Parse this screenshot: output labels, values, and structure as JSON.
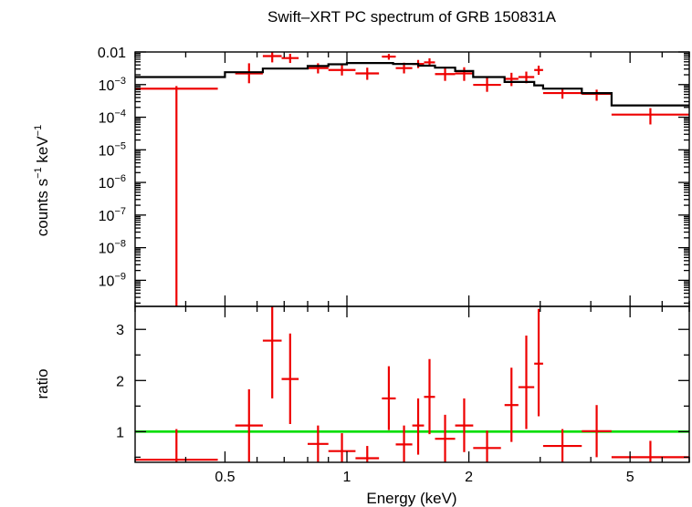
{
  "chart_data": {
    "type": "scatter",
    "title": "Swift–XRT PC spectrum of GRB 150831A",
    "xlabel": "Energy (keV)",
    "x_scale": "log",
    "x_range": [
      0.3,
      7.0
    ],
    "x_ticks": [
      {
        "value": 0.5,
        "label": "0.5"
      },
      {
        "value": 1,
        "label": "1"
      },
      {
        "value": 2,
        "label": "2"
      },
      {
        "value": 5,
        "label": "5"
      }
    ],
    "colors": {
      "data": "#ee0000",
      "model": "#000000",
      "unity": "#00dd00",
      "frame": "#000000"
    },
    "top_panel": {
      "ylabel_main": "counts s",
      "ylabel_exp1": "−1",
      "ylabel_mid": " keV",
      "ylabel_exp2": "−1",
      "y_scale": "log",
      "y_range_exp": [
        -9.8,
        -2.0
      ],
      "y_ticks": [
        {
          "exp": -2,
          "text": "0.01",
          "sup": ""
        },
        {
          "exp": -3,
          "text": "10",
          "sup": "−3"
        },
        {
          "exp": -4,
          "text": "10",
          "sup": "−4"
        },
        {
          "exp": -5,
          "text": "10",
          "sup": "−5"
        },
        {
          "exp": -6,
          "text": "10",
          "sup": "−6"
        },
        {
          "exp": -7,
          "text": "10",
          "sup": "−7"
        },
        {
          "exp": -8,
          "text": "10",
          "sup": "−8"
        },
        {
          "exp": -9,
          "text": "10",
          "sup": "−9"
        }
      ],
      "data": [
        {
          "xlo": 0.3,
          "xhi": 0.48,
          "y": 0.00075,
          "ylo": 1e-10,
          "yhi": 0.0009
        },
        {
          "xlo": 0.53,
          "xhi": 0.62,
          "y": 0.0022,
          "ylo": 0.0011,
          "yhi": 0.0045
        },
        {
          "xlo": 0.62,
          "xhi": 0.69,
          "y": 0.0075,
          "ylo": 0.0048,
          "yhi": 0.0098
        },
        {
          "xlo": 0.69,
          "xhi": 0.76,
          "y": 0.0065,
          "ylo": 0.0046,
          "yhi": 0.0088
        },
        {
          "xlo": 0.8,
          "xhi": 0.9,
          "y": 0.0032,
          "ylo": 0.0022,
          "yhi": 0.0045
        },
        {
          "xlo": 0.9,
          "xhi": 1.05,
          "y": 0.0028,
          "ylo": 0.0019,
          "yhi": 0.0041
        },
        {
          "xlo": 1.05,
          "xhi": 1.2,
          "y": 0.0022,
          "ylo": 0.0014,
          "yhi": 0.0033
        },
        {
          "xlo": 1.22,
          "xhi": 1.32,
          "y": 0.0072,
          "ylo": 0.0058,
          "yhi": 0.0087
        },
        {
          "xlo": 1.32,
          "xhi": 1.45,
          "y": 0.0032,
          "ylo": 0.0022,
          "yhi": 0.0047
        },
        {
          "xlo": 1.45,
          "xhi": 1.55,
          "y": 0.0043,
          "ylo": 0.0032,
          "yhi": 0.0057
        },
        {
          "xlo": 1.55,
          "xhi": 1.65,
          "y": 0.0048,
          "ylo": 0.0036,
          "yhi": 0.0064
        },
        {
          "xlo": 1.65,
          "xhi": 1.85,
          "y": 0.0021,
          "ylo": 0.0013,
          "yhi": 0.0034
        },
        {
          "xlo": 1.85,
          "xhi": 2.05,
          "y": 0.0022,
          "ylo": 0.0013,
          "yhi": 0.0034
        },
        {
          "xlo": 2.05,
          "xhi": 2.4,
          "y": 0.00098,
          "ylo": 0.0006,
          "yhi": 0.0017
        },
        {
          "xlo": 2.45,
          "xhi": 2.65,
          "y": 0.0015,
          "ylo": 0.0009,
          "yhi": 0.0023
        },
        {
          "xlo": 2.65,
          "xhi": 2.9,
          "y": 0.0017,
          "ylo": 0.0011,
          "yhi": 0.0025
        },
        {
          "xlo": 2.9,
          "xhi": 3.05,
          "y": 0.0028,
          "ylo": 0.002,
          "yhi": 0.0038
        },
        {
          "xlo": 3.05,
          "xhi": 3.8,
          "y": 0.00055,
          "ylo": 0.00037,
          "yhi": 0.00078
        },
        {
          "xlo": 3.8,
          "xhi": 4.5,
          "y": 0.00052,
          "ylo": 0.00032,
          "yhi": 0.0007
        },
        {
          "xlo": 4.5,
          "xhi": 7.0,
          "y": 0.00012,
          "ylo": 6e-05,
          "yhi": 0.00019
        }
      ],
      "model": [
        {
          "x": 0.3,
          "y": 0.0017
        },
        {
          "x": 0.5,
          "y": 0.0017
        },
        {
          "x": 0.5,
          "y": 0.0024
        },
        {
          "x": 0.62,
          "y": 0.0024
        },
        {
          "x": 0.62,
          "y": 0.0031
        },
        {
          "x": 0.8,
          "y": 0.0031
        },
        {
          "x": 0.8,
          "y": 0.0037
        },
        {
          "x": 0.9,
          "y": 0.0037
        },
        {
          "x": 0.9,
          "y": 0.0042
        },
        {
          "x": 1.0,
          "y": 0.0042
        },
        {
          "x": 1.0,
          "y": 0.0046
        },
        {
          "x": 1.3,
          "y": 0.0046
        },
        {
          "x": 1.3,
          "y": 0.0043
        },
        {
          "x": 1.5,
          "y": 0.0043
        },
        {
          "x": 1.5,
          "y": 0.0038
        },
        {
          "x": 1.65,
          "y": 0.0038
        },
        {
          "x": 1.65,
          "y": 0.0033
        },
        {
          "x": 1.85,
          "y": 0.0033
        },
        {
          "x": 1.85,
          "y": 0.0026
        },
        {
          "x": 2.05,
          "y": 0.0026
        },
        {
          "x": 2.05,
          "y": 0.0017
        },
        {
          "x": 2.45,
          "y": 0.0017
        },
        {
          "x": 2.45,
          "y": 0.0012
        },
        {
          "x": 2.9,
          "y": 0.0012
        },
        {
          "x": 2.9,
          "y": 0.00095
        },
        {
          "x": 3.05,
          "y": 0.00095
        },
        {
          "x": 3.05,
          "y": 0.00075
        },
        {
          "x": 3.8,
          "y": 0.00075
        },
        {
          "x": 3.8,
          "y": 0.00055
        },
        {
          "x": 4.5,
          "y": 0.00055
        },
        {
          "x": 4.5,
          "y": 0.00023
        },
        {
          "x": 7.0,
          "y": 0.00023
        }
      ]
    },
    "bottom_panel": {
      "ylabel": "ratio",
      "y_scale": "linear",
      "y_range": [
        0.4,
        3.45
      ],
      "y_ticks": [
        1,
        2,
        3
      ],
      "unity_line": 1.0,
      "data": [
        {
          "xlo": 0.3,
          "xhi": 0.48,
          "y": 0.45,
          "ylo": 0.4,
          "yhi": 1.05
        },
        {
          "xlo": 0.53,
          "xhi": 0.62,
          "y": 1.12,
          "ylo": 0.4,
          "yhi": 1.83
        },
        {
          "xlo": 0.62,
          "xhi": 0.69,
          "y": 2.78,
          "ylo": 1.65,
          "yhi": 3.45
        },
        {
          "xlo": 0.69,
          "xhi": 0.76,
          "y": 2.03,
          "ylo": 1.15,
          "yhi": 2.92
        },
        {
          "xlo": 0.8,
          "xhi": 0.9,
          "y": 0.76,
          "ylo": 0.4,
          "yhi": 1.12
        },
        {
          "xlo": 0.9,
          "xhi": 1.05,
          "y": 0.62,
          "ylo": 0.4,
          "yhi": 0.97
        },
        {
          "xlo": 1.05,
          "xhi": 1.2,
          "y": 0.48,
          "ylo": 0.4,
          "yhi": 0.72
        },
        {
          "xlo": 1.22,
          "xhi": 1.32,
          "y": 1.65,
          "ylo": 1.03,
          "yhi": 2.28
        },
        {
          "xlo": 1.32,
          "xhi": 1.45,
          "y": 0.75,
          "ylo": 0.4,
          "yhi": 1.12
        },
        {
          "xlo": 1.45,
          "xhi": 1.55,
          "y": 1.12,
          "ylo": 0.55,
          "yhi": 1.65
        },
        {
          "xlo": 1.55,
          "xhi": 1.65,
          "y": 1.68,
          "ylo": 0.95,
          "yhi": 2.42
        },
        {
          "xlo": 1.65,
          "xhi": 1.85,
          "y": 0.86,
          "ylo": 0.4,
          "yhi": 1.33
        },
        {
          "xlo": 1.85,
          "xhi": 2.05,
          "y": 1.12,
          "ylo": 0.6,
          "yhi": 1.65
        },
        {
          "xlo": 2.05,
          "xhi": 2.4,
          "y": 0.68,
          "ylo": 0.4,
          "yhi": 1.02
        },
        {
          "xlo": 2.45,
          "xhi": 2.65,
          "y": 1.52,
          "ylo": 0.8,
          "yhi": 2.25
        },
        {
          "xlo": 2.65,
          "xhi": 2.9,
          "y": 1.87,
          "ylo": 1.05,
          "yhi": 2.88
        },
        {
          "xlo": 2.9,
          "xhi": 3.05,
          "y": 2.33,
          "ylo": 1.3,
          "yhi": 3.4
        },
        {
          "xlo": 3.05,
          "xhi": 3.8,
          "y": 0.72,
          "ylo": 0.4,
          "yhi": 1.05
        },
        {
          "xlo": 3.8,
          "xhi": 4.5,
          "y": 1.01,
          "ylo": 0.5,
          "yhi": 1.52
        },
        {
          "xlo": 4.5,
          "xhi": 7.0,
          "y": 0.5,
          "ylo": 0.4,
          "yhi": 0.82
        }
      ]
    }
  }
}
